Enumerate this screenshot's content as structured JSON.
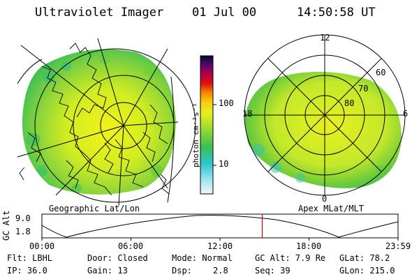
{
  "header": {
    "title": "Ultraviolet Imager",
    "date": "01 Jul 00",
    "time": "14:50:58 UT"
  },
  "left_map": {
    "caption": "Geographic Lat/Lon"
  },
  "right_map": {
    "caption": "Apex MLat/MLT",
    "mlt_labels": {
      "top": "12",
      "left": "18",
      "right": "6",
      "bottom": "0"
    },
    "lat_labels": [
      "60",
      "70",
      "80"
    ]
  },
  "colorbar": {
    "unit_label": "photon cm⁻²s⁻¹",
    "tick_labels": [
      "100",
      "10"
    ],
    "scale": "log"
  },
  "altitude_plot": {
    "ylabel": "GC Alt",
    "y_ticks": [
      "9.0",
      "1.8"
    ],
    "x_ticks": [
      "00:00",
      "06:00",
      "12:00",
      "18:00",
      "23:59"
    ],
    "current_time_marker_hours": 14.85,
    "marker_color": "#cc0000"
  },
  "info": {
    "flt": "Flt: LBHL",
    "door": "Door: Closed",
    "mode": "Mode: Normal",
    "gc_alt": "GC Alt: 7.9 Re",
    "glat": "GLat: 78.2",
    "ip": "IP: 36.0",
    "gain": "Gain: 13",
    "dsp_label": "Dsp:",
    "dsp_value": "2.8",
    "seq": "Seq: 39",
    "glon": "GLon: 215.0"
  },
  "colors": {
    "green": "#3fbf3f",
    "yellow_green": "#b9e82a",
    "yellow": "#e8f020",
    "cyan": "#39c9d8"
  }
}
